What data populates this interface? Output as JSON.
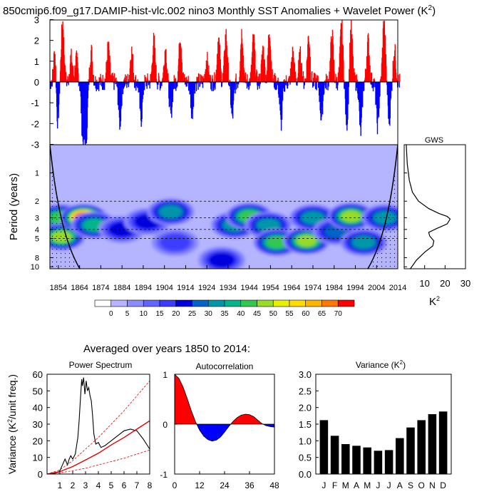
{
  "figure": {
    "title": "850cmip6.f09_g17.DAMIP-hist-vlc.002 nino3 Monthly SST Anomalies + Wavelet Power (K",
    "title_sup": "2",
    "title_close": ")",
    "averaged_label": "Averaged over years 1850 to 2014:"
  },
  "colors": {
    "positive": "#ff0000",
    "negative": "#0000ff",
    "colorbar": [
      "#ffffff",
      "#b4b4ff",
      "#8c8cff",
      "#6464ff",
      "#3c3cff",
      "#0000dc",
      "#0064c8",
      "#0096aa",
      "#00b48c",
      "#32c850",
      "#96dc28",
      "#e6f000",
      "#ffdc00",
      "#ffb400",
      "#ff7800",
      "#ff0000"
    ]
  },
  "chart_data": [
    {
      "id": "sst-anomaly",
      "type": "bar",
      "title": "",
      "ylabel": "",
      "ylim": [
        -3,
        3
      ],
      "yticks": [
        3,
        2,
        1,
        0,
        -1,
        -2,
        -3
      ],
      "x_range": [
        1850,
        2014
      ],
      "note": "monthly nino3 SST anomaly bars, red above zero, blue below",
      "peaks": [
        {
          "year": 1852.5,
          "value": 1.9
        },
        {
          "year": 1853.5,
          "value": -2.3
        },
        {
          "year": 1856.0,
          "value": 2.9
        },
        {
          "year": 1860.0,
          "value": 1.2
        },
        {
          "year": 1862.5,
          "value": 1.1
        },
        {
          "year": 1865.5,
          "value": -2.6
        },
        {
          "year": 1867.0,
          "value": -2.9
        },
        {
          "year": 1869.5,
          "value": 1.5
        },
        {
          "year": 1877.5,
          "value": 1.7
        },
        {
          "year": 1883.0,
          "value": -2.0
        },
        {
          "year": 1888.5,
          "value": 1.5
        },
        {
          "year": 1893.0,
          "value": -1.8
        },
        {
          "year": 1899.0,
          "value": 2.0
        },
        {
          "year": 1904.5,
          "value": 1.6
        },
        {
          "year": 1907.0,
          "value": -1.6
        },
        {
          "year": 1911.5,
          "value": 2.2
        },
        {
          "year": 1917.0,
          "value": -1.5
        },
        {
          "year": 1924.0,
          "value": 1.1
        },
        {
          "year": 1929.5,
          "value": 2.1
        },
        {
          "year": 1933.0,
          "value": 2.3
        },
        {
          "year": 1936.0,
          "value": -1.7
        },
        {
          "year": 1940.5,
          "value": 2.4
        },
        {
          "year": 1946.0,
          "value": 2.1
        },
        {
          "year": 1950.5,
          "value": 1.6
        },
        {
          "year": 1953.5,
          "value": 2.5
        },
        {
          "year": 1959.0,
          "value": -2.0
        },
        {
          "year": 1964.5,
          "value": 1.4
        },
        {
          "year": 1968.0,
          "value": 1.3
        },
        {
          "year": 1972.0,
          "value": 2.2
        },
        {
          "year": 1978.0,
          "value": -1.7
        },
        {
          "year": 1983.0,
          "value": 2.3
        },
        {
          "year": 1987.5,
          "value": 2.8
        },
        {
          "year": 1990.0,
          "value": -2.0
        },
        {
          "year": 1992.0,
          "value": 2.6
        },
        {
          "year": 1996.5,
          "value": -2.4
        },
        {
          "year": 2000.0,
          "value": 2.0
        },
        {
          "year": 2004.5,
          "value": -2.1
        },
        {
          "year": 2007.5,
          "value": 2.9
        },
        {
          "year": 2010.0,
          "value": -1.8
        },
        {
          "year": 2012.5,
          "value": 1.5
        }
      ]
    },
    {
      "id": "wavelet-power",
      "type": "heatmap",
      "ylabel": "Period (years)",
      "ytick_values": [
        1,
        2,
        3,
        4,
        5,
        8,
        10
      ],
      "ytick_labels": [
        "1",
        "2",
        "3",
        "4",
        "5",
        "8",
        "10"
      ],
      "xticks": [
        1854,
        1864,
        1874,
        1884,
        1894,
        1904,
        1914,
        1924,
        1934,
        1944,
        1954,
        1964,
        1974,
        1984,
        1994,
        2004,
        2014
      ],
      "x_range": [
        1850,
        2014
      ],
      "y_range": [
        0.5,
        10.5
      ],
      "y_scale": "log",
      "dashed_periods": [
        2,
        3,
        4,
        5
      ],
      "blobs": [
        {
          "year": 1855,
          "period": 3.0,
          "power": 40
        },
        {
          "year": 1855.5,
          "period": 4.8,
          "power": 45
        },
        {
          "year": 1866,
          "period": 3.0,
          "power": 70
        },
        {
          "year": 1871,
          "period": 3.6,
          "power": 35
        },
        {
          "year": 1884,
          "period": 4.0,
          "power": 20
        },
        {
          "year": 1896,
          "period": 3.3,
          "power": 20
        },
        {
          "year": 1907,
          "period": 2.6,
          "power": 30
        },
        {
          "year": 1909,
          "period": 5.5,
          "power": 15
        },
        {
          "year": 1931,
          "period": 8.5,
          "power": 20
        },
        {
          "year": 1937,
          "period": 3.6,
          "power": 30
        },
        {
          "year": 1944,
          "period": 2.9,
          "power": 40
        },
        {
          "year": 1953,
          "period": 3.6,
          "power": 30
        },
        {
          "year": 1957,
          "period": 5.5,
          "power": 40
        },
        {
          "year": 1971,
          "period": 5.3,
          "power": 45
        },
        {
          "year": 1974,
          "period": 3.0,
          "power": 30
        },
        {
          "year": 1985,
          "period": 4.2,
          "power": 25
        },
        {
          "year": 1992,
          "period": 2.9,
          "power": 45
        },
        {
          "year": 1998,
          "period": 5.5,
          "power": 30
        },
        {
          "year": 2008,
          "period": 3.0,
          "power": 30
        }
      ]
    },
    {
      "id": "gws",
      "type": "line",
      "title": "GWS",
      "xlabel": "K",
      "xlabel_sup": "2",
      "xticks": [
        10,
        20,
        30
      ],
      "x_range": [
        0,
        30
      ],
      "x": [
        1.0,
        1.5,
        2.5,
        4.0,
        7.0,
        12.0,
        17.0,
        21.0,
        22.5,
        21.0,
        16.0,
        12.0,
        12.5,
        14.5,
        14.0,
        10.0,
        6.0,
        3.0
      ],
      "y": [
        0.5,
        0.8,
        1.2,
        1.6,
        2.0,
        2.4,
        2.7,
        2.9,
        3.1,
        3.5,
        3.9,
        4.3,
        4.7,
        5.3,
        6.0,
        7.0,
        8.5,
        10.5
      ]
    },
    {
      "id": "colorbar",
      "type": "table",
      "labels": [
        "0",
        "5",
        "10",
        "15",
        "20",
        "25",
        "30",
        "35",
        "40",
        "45",
        "50",
        "55",
        "60",
        "65",
        "70"
      ]
    },
    {
      "id": "power-spectrum",
      "type": "line",
      "title": "Power Spectrum",
      "ylabel": "Variance (K",
      "ylabel_sup": "2",
      "ylabel_tail": "/unit freq.)",
      "xticks": [
        1,
        2,
        3,
        4,
        5,
        6,
        7,
        8
      ],
      "yticks": [
        0,
        10,
        20,
        30,
        40,
        50,
        60
      ],
      "xlim": [
        0,
        8
      ],
      "ylim": [
        0,
        60
      ],
      "series": [
        {
          "x": [
            0,
            0.5,
            0.8,
            1.0,
            1.2,
            1.4,
            1.6,
            1.7,
            1.85,
            2.0,
            2.2,
            2.4,
            2.5,
            2.6,
            2.7,
            2.75,
            2.85,
            2.95,
            3.05,
            3.15,
            3.25,
            3.35,
            3.45,
            3.55,
            3.65,
            3.8,
            4.0,
            4.2,
            4.5,
            5.0,
            5.5,
            6.0,
            6.5,
            7.0,
            7.5,
            8.0
          ],
          "y": [
            0,
            0.3,
            1.0,
            2.0,
            5.5,
            9.0,
            5.5,
            8.5,
            11.0,
            9.0,
            12.0,
            22.0,
            32.0,
            45.0,
            57.0,
            53.0,
            58.0,
            48.0,
            56.0,
            50.0,
            52.0,
            47.0,
            44.0,
            35.0,
            24.0,
            18.0,
            19.0,
            16.0,
            17.0,
            20.0,
            23.0,
            26.0,
            27.0,
            26.0,
            21.0,
            15.0
          ]
        },
        {
          "x": [
            0,
            1,
            2,
            3,
            4,
            5,
            6,
            7,
            8
          ],
          "y": [
            0,
            1.5,
            4.5,
            8.5,
            12.5,
            17.5,
            22.0,
            27.0,
            32.0
          ]
        },
        {
          "x": [
            0,
            1,
            2,
            3,
            4,
            5,
            6,
            7,
            8
          ],
          "y": [
            0,
            2.5,
            8.0,
            15.0,
            22.0,
            30.0,
            38.0,
            47.0,
            56.0
          ]
        },
        {
          "x": [
            0,
            1,
            2,
            3,
            4,
            5,
            6,
            7,
            8
          ],
          "y": [
            0,
            0.7,
            2.0,
            3.5,
            5.5,
            7.5,
            9.5,
            12.0,
            14.5
          ]
        }
      ]
    },
    {
      "id": "autocorrelation",
      "type": "area",
      "title": "Autocorrelation",
      "xticks": [
        0,
        12,
        24,
        36,
        48
      ],
      "yticks": [
        1,
        0,
        -1
      ],
      "xlim": [
        0,
        48
      ],
      "ylim": [
        -1,
        1
      ],
      "x": [
        0,
        2,
        4,
        6,
        8,
        10,
        12,
        14,
        16,
        18,
        20,
        22,
        24,
        26,
        28,
        30,
        32,
        34,
        36,
        38,
        40,
        42,
        44,
        46,
        48
      ],
      "y": [
        1.0,
        0.92,
        0.75,
        0.52,
        0.27,
        0.05,
        -0.12,
        -0.24,
        -0.31,
        -0.34,
        -0.32,
        -0.26,
        -0.16,
        -0.05,
        0.05,
        0.13,
        0.18,
        0.2,
        0.19,
        0.15,
        0.08,
        0.01,
        -0.03,
        -0.05,
        -0.06
      ]
    },
    {
      "id": "variance",
      "type": "bar",
      "title": "Variance (K",
      "title_sup": "2",
      "title_close": ")",
      "categories": [
        "J",
        "F",
        "M",
        "A",
        "M",
        "J",
        "J",
        "A",
        "S",
        "O",
        "N",
        "D"
      ],
      "values": [
        1.62,
        1.15,
        0.9,
        0.85,
        0.8,
        0.7,
        0.72,
        1.08,
        1.4,
        1.62,
        1.8,
        1.88
      ],
      "yticks": [
        "3.0",
        "2.5",
        "2.0",
        "1.5",
        "1.0",
        "0.5",
        "0.0"
      ],
      "ylim": [
        0,
        3
      ]
    }
  ]
}
